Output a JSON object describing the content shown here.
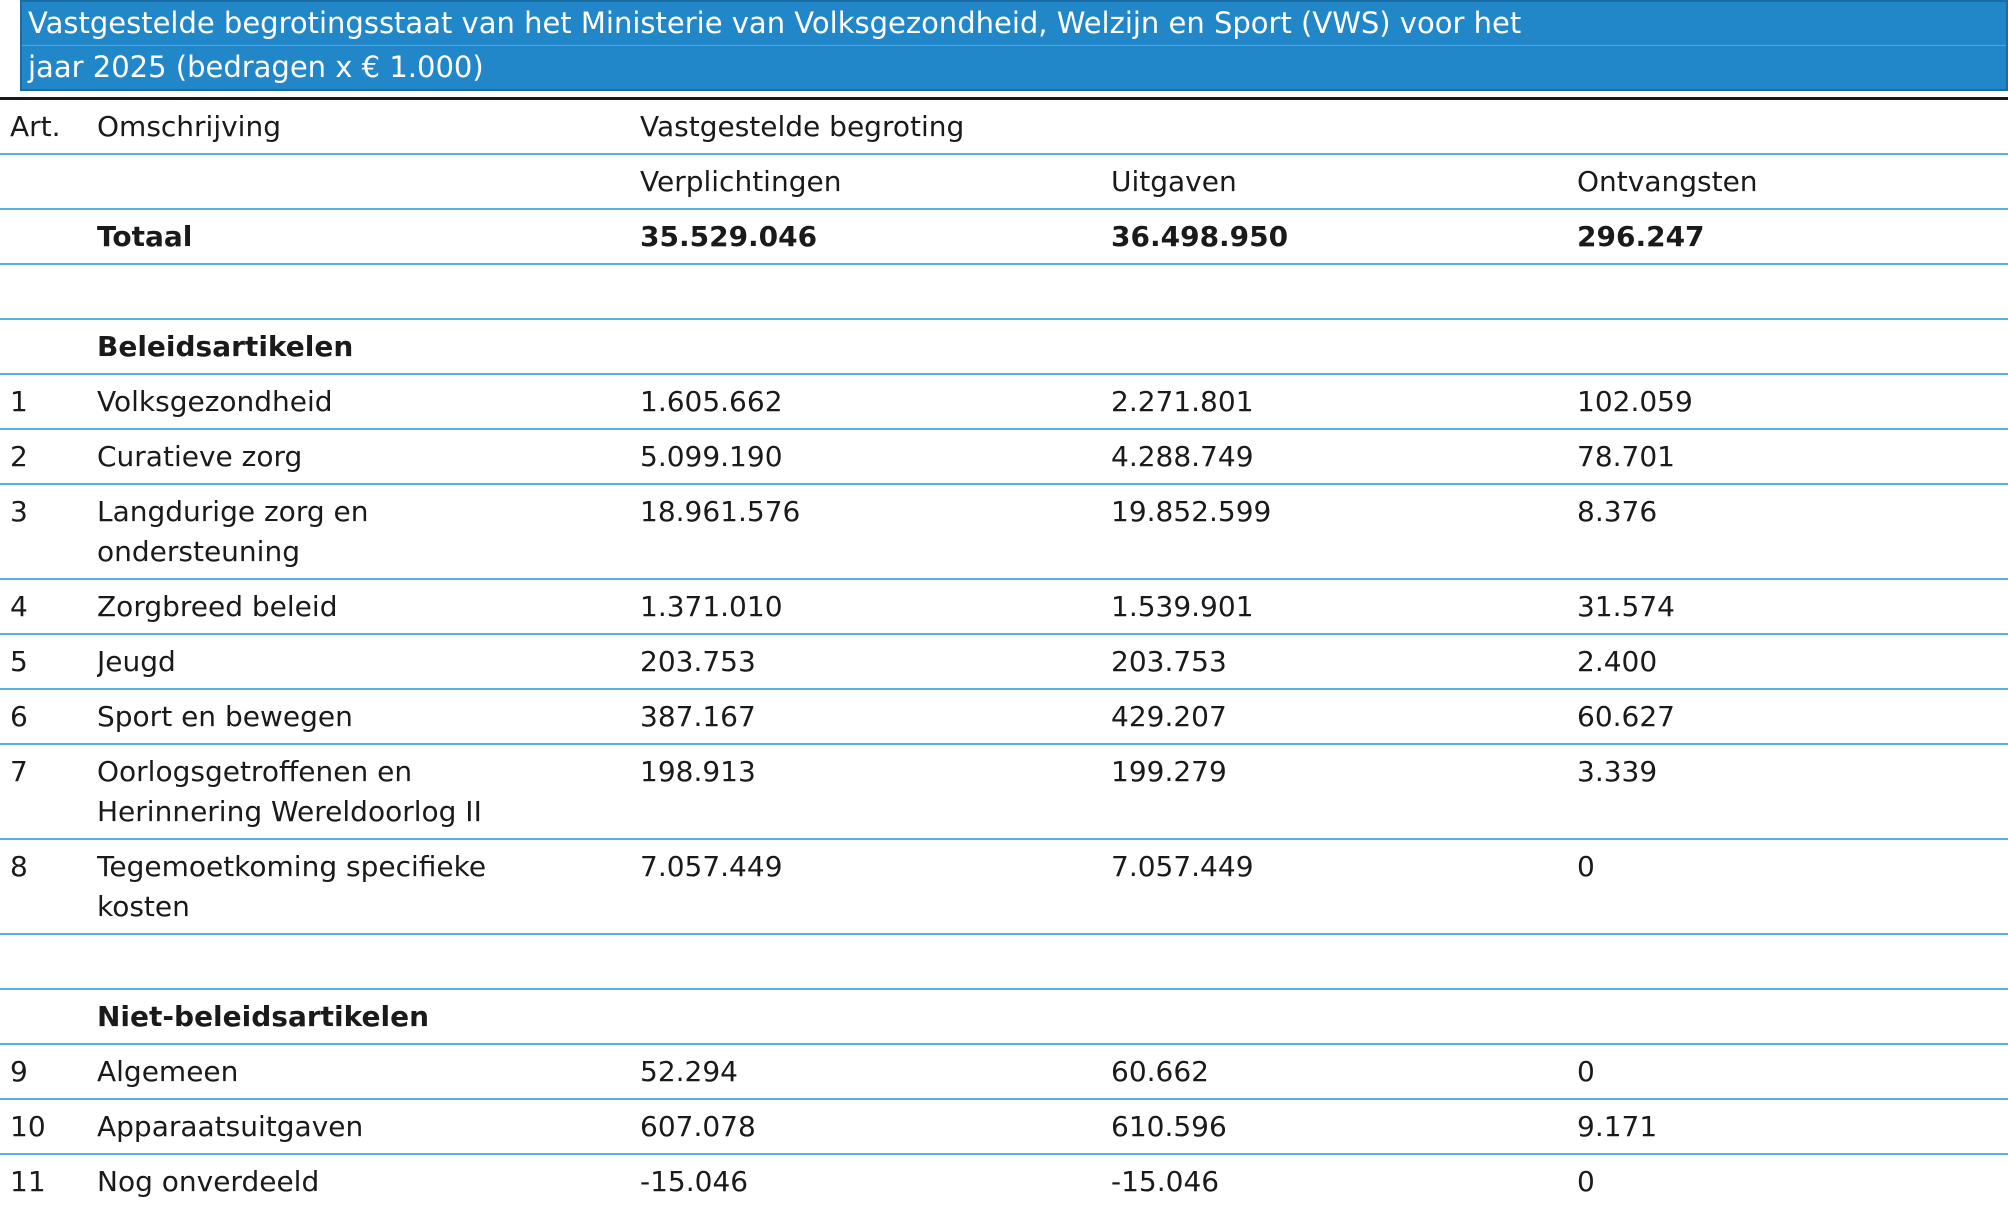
{
  "title": {
    "lines": [
      "Vastgestelde begrotingsstaat van het Ministerie van Volksgezondheid, Welzijn en Sport (VWS) voor het",
      "jaar 2025 (bedragen x € 1.000)"
    ]
  },
  "table": {
    "col_headers": {
      "art": "Art.",
      "omschrijving": "Omschrijving",
      "group": "Vastgestelde begroting",
      "verplichtingen": "Verplichtingen",
      "uitgaven": "Uitgaven",
      "ontvangsten": "Ontvangsten"
    },
    "totaal": {
      "label": "Totaal",
      "verplichtingen": "35.529.046",
      "uitgaven": "36.498.950",
      "ontvangsten": "296.247"
    },
    "sections": [
      {
        "header": "Beleidsartikelen",
        "rows": [
          {
            "art": "1",
            "label": "Volksgezondheid",
            "verplichtingen": "1.605.662",
            "uitgaven": "2.271.801",
            "ontvangsten": "102.059"
          },
          {
            "art": "2",
            "label": "Curatieve zorg",
            "verplichtingen": "5.099.190",
            "uitgaven": "4.288.749",
            "ontvangsten": "78.701"
          },
          {
            "art": "3",
            "label": "Langdurige zorg en\nondersteuning",
            "verplichtingen": "18.961.576",
            "uitgaven": "19.852.599",
            "ontvangsten": "8.376"
          },
          {
            "art": "4",
            "label": "Zorgbreed beleid",
            "verplichtingen": "1.371.010",
            "uitgaven": "1.539.901",
            "ontvangsten": "31.574"
          },
          {
            "art": "5",
            "label": "Jeugd",
            "verplichtingen": "203.753",
            "uitgaven": "203.753",
            "ontvangsten": "2.400"
          },
          {
            "art": "6",
            "label": "Sport en bewegen",
            "verplichtingen": "387.167",
            "uitgaven": "429.207",
            "ontvangsten": "60.627"
          },
          {
            "art": "7",
            "label": "Oorlogsgetroffenen en\nHerinnering Wereldoorlog II",
            "verplichtingen": "198.913",
            "uitgaven": "199.279",
            "ontvangsten": "3.339"
          },
          {
            "art": "8",
            "label": "Tegemoetkoming specifieke\nkosten",
            "verplichtingen": "7.057.449",
            "uitgaven": "7.057.449",
            "ontvangsten": "0"
          }
        ]
      },
      {
        "header": "Niet-beleidsartikelen",
        "rows": [
          {
            "art": "9",
            "label": "Algemeen",
            "verplichtingen": "52.294",
            "uitgaven": "60.662",
            "ontvangsten": "0"
          },
          {
            "art": "10",
            "label": "Apparaatsuitgaven",
            "verplichtingen": "607.078",
            "uitgaven": "610.596",
            "ontvangsten": "9.171"
          },
          {
            "art": "11",
            "label": "Nog onverdeeld",
            "verplichtingen": "-15.046",
            "uitgaven": "-15.046",
            "ontvangsten": "0"
          }
        ]
      }
    ]
  },
  "colors": {
    "banner_bg": "#2287c8",
    "banner_border": "#1a6ca3",
    "caption_divider": "#4da9dd",
    "row_line": "#55b1e2",
    "rule_line": "#1a1a1a",
    "text": "#1a1a1a",
    "banner_text": "#ffffff"
  }
}
